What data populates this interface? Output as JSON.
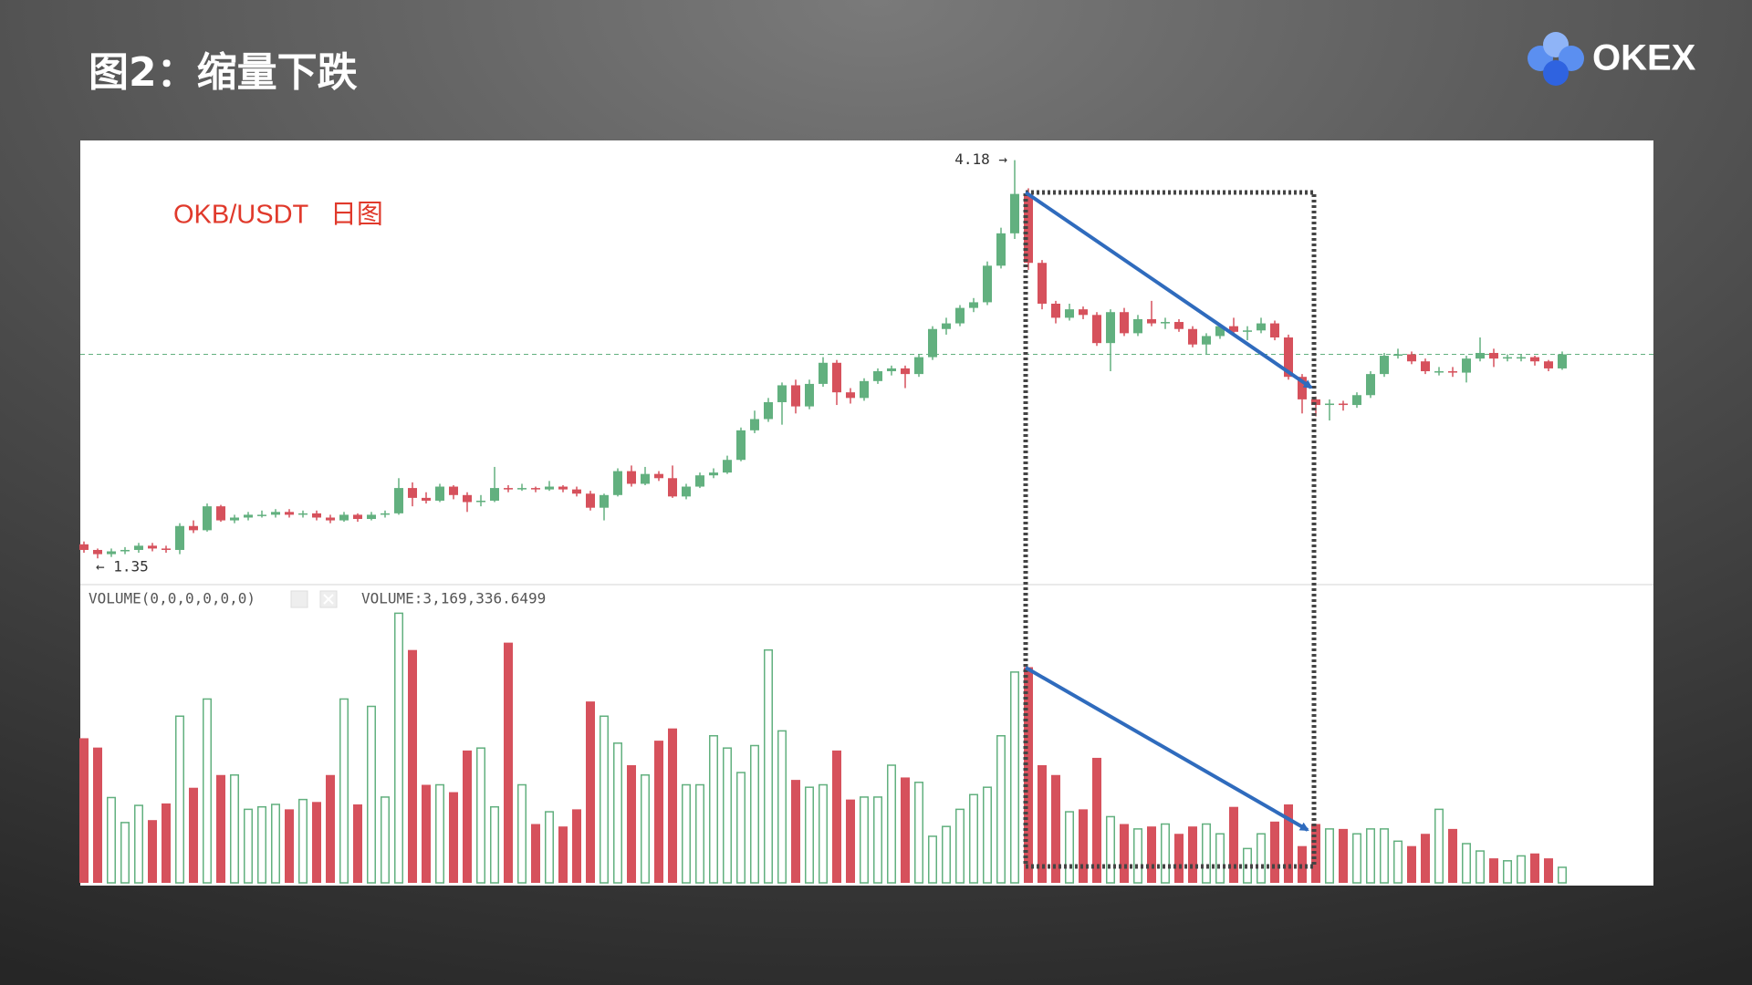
{
  "header": {
    "title": "图2：缩量下跌",
    "logo": "OKEX"
  },
  "chart_data": {
    "type": "candlestick",
    "title": "OKB/USDT   日图",
    "high_label": "4.18 →",
    "low_label": "← 1.35",
    "volume_indicator": "VOLUME(0,0,0,0,0,0)",
    "volume_readout": "VOLUME:3,169,336.6499",
    "up_color": "#62b07f",
    "down_color": "#d6515c",
    "ylim": [
      1.17,
      4.32
    ],
    "volume_ylim": [
      0,
      56000000
    ],
    "price_line": 2.8,
    "open": [
      1.45,
      1.41,
      1.38,
      1.4,
      1.41,
      1.44,
      1.42,
      1.41,
      1.58,
      1.55,
      1.72,
      1.62,
      1.64,
      1.66,
      1.66,
      1.68,
      1.66,
      1.67,
      1.64,
      1.62,
      1.66,
      1.63,
      1.66,
      1.67,
      1.85,
      1.78,
      1.76,
      1.86,
      1.8,
      1.75,
      1.76,
      1.85,
      1.84,
      1.85,
      1.84,
      1.86,
      1.84,
      1.81,
      1.71,
      1.8,
      1.97,
      1.88,
      1.95,
      1.92,
      1.79,
      1.86,
      1.94,
      1.96,
      2.05,
      2.26,
      2.34,
      2.46,
      2.58,
      2.43,
      2.59,
      2.74,
      2.53,
      2.49,
      2.61,
      2.68,
      2.7,
      2.66,
      2.78,
      2.98,
      3.02,
      3.13,
      3.17,
      3.43,
      3.66,
      3.94,
      3.45,
      3.16,
      3.06,
      3.12,
      3.08,
      2.88,
      3.1,
      2.95,
      3.05,
      3.02,
      3.03,
      2.98,
      2.87,
      2.93,
      3.0,
      2.96,
      2.97,
      3.02,
      2.92,
      2.64,
      2.48,
      2.44,
      2.45,
      2.44,
      2.51,
      2.66,
      2.79,
      2.8,
      2.75,
      2.68,
      2.68,
      2.67,
      2.77,
      2.81,
      2.77,
      2.78,
      2.78,
      2.75,
      2.7
    ],
    "high": [
      1.47,
      1.42,
      1.42,
      1.43,
      1.46,
      1.46,
      1.44,
      1.6,
      1.62,
      1.74,
      1.73,
      1.66,
      1.68,
      1.69,
      1.7,
      1.7,
      1.69,
      1.69,
      1.66,
      1.68,
      1.67,
      1.68,
      1.69,
      1.92,
      1.89,
      1.82,
      1.88,
      1.87,
      1.82,
      1.8,
      2.0,
      1.87,
      1.88,
      1.86,
      1.9,
      1.87,
      1.86,
      1.83,
      1.81,
      1.99,
      2.01,
      2.0,
      1.97,
      2.01,
      1.88,
      1.96,
      1.99,
      2.08,
      2.28,
      2.4,
      2.49,
      2.6,
      2.62,
      2.62,
      2.78,
      2.76,
      2.56,
      2.63,
      2.7,
      2.72,
      2.72,
      2.8,
      3.0,
      3.06,
      3.15,
      3.2,
      3.46,
      3.7,
      4.18,
      3.98,
      3.47,
      3.18,
      3.16,
      3.14,
      3.1,
      3.12,
      3.13,
      3.08,
      3.18,
      3.06,
      3.05,
      3.0,
      2.95,
      3.02,
      3.06,
      3.0,
      3.06,
      3.04,
      2.94,
      2.66,
      2.5,
      2.48,
      2.47,
      2.53,
      2.68,
      2.81,
      2.84,
      2.82,
      2.77,
      2.71,
      2.71,
      2.79,
      2.92,
      2.84,
      2.8,
      2.8,
      2.79,
      2.76,
      2.82
    ],
    "low": [
      1.39,
      1.35,
      1.36,
      1.38,
      1.39,
      1.4,
      1.39,
      1.38,
      1.53,
      1.54,
      1.61,
      1.6,
      1.62,
      1.64,
      1.64,
      1.64,
      1.64,
      1.62,
      1.6,
      1.61,
      1.61,
      1.62,
      1.64,
      1.66,
      1.72,
      1.74,
      1.75,
      1.77,
      1.68,
      1.72,
      1.75,
      1.82,
      1.83,
      1.82,
      1.83,
      1.82,
      1.79,
      1.69,
      1.62,
      1.79,
      1.86,
      1.87,
      1.9,
      1.78,
      1.77,
      1.85,
      1.92,
      1.95,
      2.04,
      2.24,
      2.32,
      2.3,
      2.38,
      2.41,
      2.57,
      2.44,
      2.45,
      2.47,
      2.59,
      2.65,
      2.56,
      2.64,
      2.76,
      2.94,
      3.0,
      3.1,
      3.15,
      3.41,
      3.62,
      3.4,
      3.12,
      3.02,
      3.04,
      3.05,
      2.86,
      2.68,
      2.93,
      2.93,
      3.0,
      2.98,
      2.96,
      2.85,
      2.8,
      2.91,
      2.94,
      2.9,
      2.95,
      2.9,
      2.62,
      2.38,
      2.36,
      2.33,
      2.4,
      2.42,
      2.49,
      2.64,
      2.77,
      2.73,
      2.66,
      2.65,
      2.64,
      2.6,
      2.75,
      2.71,
      2.75,
      2.75,
      2.72,
      2.68,
      2.69
    ],
    "close": [
      1.41,
      1.38,
      1.4,
      1.41,
      1.44,
      1.42,
      1.41,
      1.58,
      1.55,
      1.72,
      1.62,
      1.64,
      1.66,
      1.66,
      1.68,
      1.66,
      1.67,
      1.64,
      1.62,
      1.66,
      1.63,
      1.66,
      1.67,
      1.85,
      1.78,
      1.76,
      1.86,
      1.8,
      1.75,
      1.76,
      1.85,
      1.84,
      1.85,
      1.84,
      1.86,
      1.84,
      1.81,
      1.71,
      1.8,
      1.97,
      1.88,
      1.95,
      1.92,
      1.79,
      1.86,
      1.94,
      1.96,
      2.05,
      2.26,
      2.34,
      2.46,
      2.58,
      2.43,
      2.59,
      2.74,
      2.53,
      2.49,
      2.61,
      2.68,
      2.7,
      2.66,
      2.78,
      2.98,
      3.02,
      3.13,
      3.17,
      3.43,
      3.66,
      3.94,
      3.45,
      3.16,
      3.06,
      3.12,
      3.08,
      2.88,
      3.1,
      2.95,
      3.05,
      3.02,
      3.03,
      2.98,
      2.87,
      2.93,
      3.0,
      2.96,
      2.97,
      3.02,
      2.92,
      2.64,
      2.48,
      2.44,
      2.45,
      2.44,
      2.51,
      2.66,
      2.79,
      2.8,
      2.75,
      2.68,
      2.68,
      2.67,
      2.77,
      2.81,
      2.77,
      2.78,
      2.78,
      2.75,
      2.7,
      2.8
    ],
    "volume": [
      29500000,
      27600000,
      17400000,
      12300000,
      15800000,
      12800000,
      16200000,
      34000000,
      19400000,
      37500000,
      22000000,
      22000000,
      15000000,
      15500000,
      16000000,
      15000000,
      17000000,
      16500000,
      22000000,
      37500000,
      16000000,
      36000000,
      17500000,
      55000000,
      47500000,
      20000000,
      20000000,
      18500000,
      27000000,
      27500000,
      15500000,
      49000000,
      20000000,
      12000000,
      14500000,
      11500000,
      15000000,
      37000000,
      34000000,
      28500000,
      24000000,
      22000000,
      29000000,
      31500000,
      20000000,
      20000000,
      30000000,
      27500000,
      22500000,
      28000000,
      47500000,
      31000000,
      21000000,
      19500000,
      20000000,
      27000000,
      17000000,
      17500000,
      17500000,
      24000000,
      21500000,
      20500000,
      9500000,
      11500000,
      15000000,
      18000000,
      19500000,
      30000000,
      43000000,
      44000000,
      24000000,
      22000000,
      14500000,
      15000000,
      25500000,
      13500000,
      12000000,
      11000000,
      11500000,
      12000000,
      10000000,
      11500000,
      12000000,
      10000000,
      15500000,
      7000000,
      10000000,
      12500000,
      16000000,
      7500000,
      12000000,
      11000000,
      11000000,
      10000000,
      11000000,
      11000000,
      8500000,
      7500000,
      10000000,
      15000000,
      11000000,
      8000000,
      6500000,
      5000000,
      4500000,
      5500000,
      6000000,
      5000000,
      3169336.6499
    ]
  }
}
